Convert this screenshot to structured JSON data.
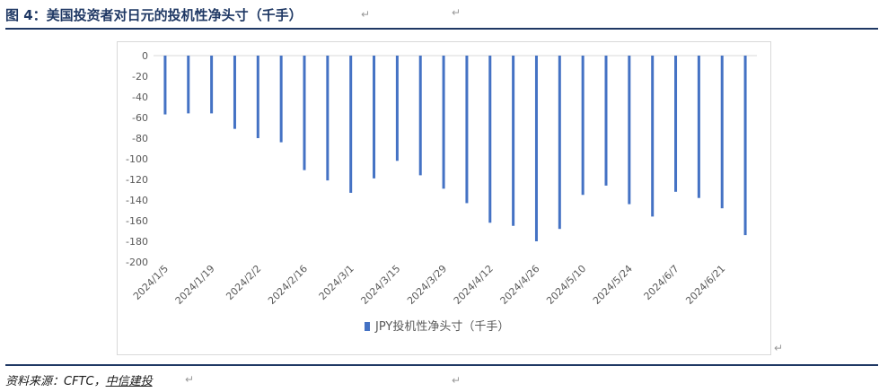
{
  "header": {
    "title": "图 4：美国投资者对日元的投机性净头寸（千手）"
  },
  "footer": {
    "source_prefix": "资料来源：CFTC，",
    "source_brand": "中信建投"
  },
  "colors": {
    "bar": "#4472c4",
    "title": "#1f3864",
    "rule": "#1f3864"
  },
  "chart_data": {
    "type": "bar",
    "categories": [
      "2024/1/5",
      "2024/1/12",
      "2024/1/19",
      "2024/1/26",
      "2024/2/2",
      "2024/2/9",
      "2024/2/16",
      "2024/2/23",
      "2024/3/1",
      "2024/3/8",
      "2024/3/15",
      "2024/3/22",
      "2024/3/29",
      "2024/4/5",
      "2024/4/12",
      "2024/4/19",
      "2024/4/26",
      "2024/5/3",
      "2024/5/10",
      "2024/5/17",
      "2024/5/24",
      "2024/5/31",
      "2024/6/7",
      "2024/6/14",
      "2024/6/21",
      "2024/6/28"
    ],
    "tick_labels": [
      "2024/1/5",
      "2024/1/19",
      "2024/2/2",
      "2024/2/16",
      "2024/3/1",
      "2024/3/15",
      "2024/3/29",
      "2024/4/12",
      "2024/4/26",
      "2024/5/10",
      "2024/5/24",
      "2024/6/7",
      "2024/6/21"
    ],
    "series": [
      {
        "name": "JPY投机性净头寸（千手）",
        "values": [
          -57,
          -56,
          -56,
          -71,
          -80,
          -84,
          -111,
          -121,
          -133,
          -119,
          -102,
          -116,
          -129,
          -143,
          -162,
          -165,
          -180,
          -168,
          -135,
          -126,
          -144,
          -156,
          -132,
          -138,
          -148,
          -174
        ]
      }
    ],
    "y_ticks": [
      0,
      -20,
      -40,
      -60,
      -80,
      -100,
      -120,
      -140,
      -160,
      -180,
      -200
    ],
    "ylim": [
      -200,
      0
    ],
    "grid": false,
    "legend_position": "bottom"
  }
}
